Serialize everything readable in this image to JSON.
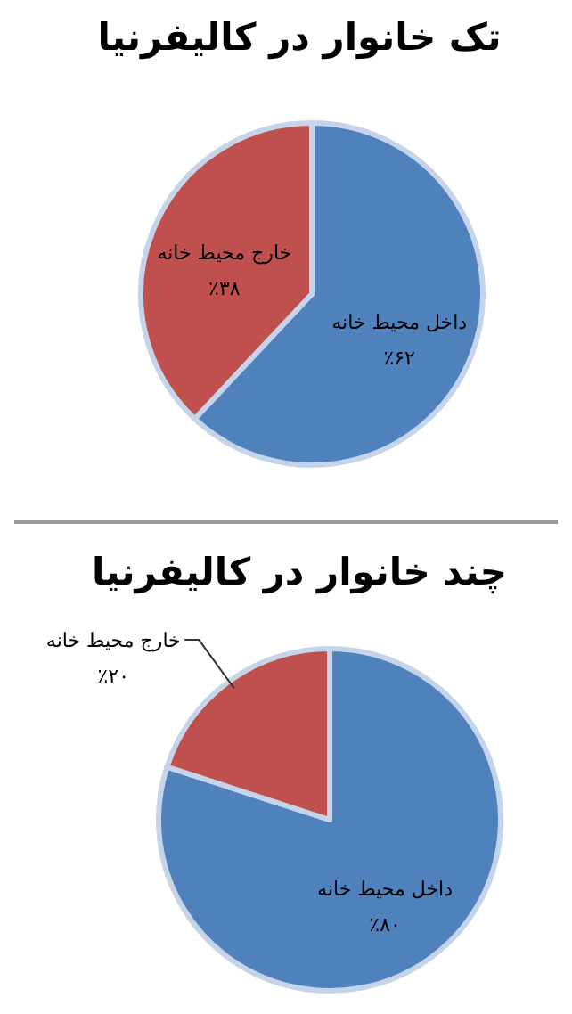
{
  "chart_data": [
    {
      "type": "pie",
      "title": "تک خانوار در کالیفرنیا",
      "categories": [
        "داخل محیط خانه",
        "خارج محیط خانه"
      ],
      "values": [
        62,
        38
      ],
      "value_labels": [
        "٪۶۲",
        "٪۳۸"
      ],
      "colors": [
        "#4f81bd",
        "#c0504d"
      ]
    },
    {
      "type": "pie",
      "title": "چند خانوار در کالیفرنیا",
      "categories": [
        "داخل محیط خانه",
        "خارج محیط خانه"
      ],
      "values": [
        80,
        20
      ],
      "value_labels": [
        "٪۸۰",
        "٪۲۰"
      ],
      "colors": [
        "#4f81bd",
        "#c0504d"
      ]
    }
  ]
}
